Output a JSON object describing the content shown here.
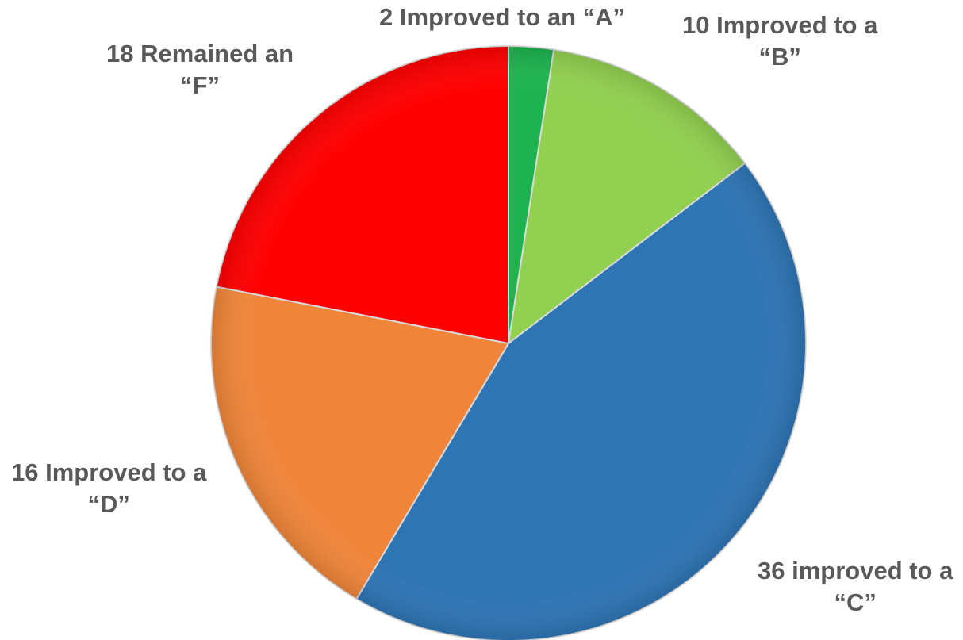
{
  "chart_data": {
    "type": "pie",
    "start_angle_deg": 0,
    "direction": "clockwise",
    "slices": [
      {
        "value": 2,
        "label_line1": "2  Improved to an “A”",
        "label_line2": "",
        "color": "#1db34e"
      },
      {
        "value": 10,
        "label_line1": "10 Improved to a",
        "label_line2": "“B”",
        "color": "#92d050"
      },
      {
        "value": 36,
        "label_line1": "36 improved to a",
        "label_line2": "“C”",
        "color": "#2e75b6"
      },
      {
        "value": 16,
        "label_line1": "16 Improved to a",
        "label_line2": "“D”",
        "color": "#f0853a"
      },
      {
        "value": 18,
        "label_line1": "18 Remained an",
        "label_line2": "“F”",
        "color": "#ff0000"
      }
    ],
    "legend": "none",
    "label_color": "#595959"
  }
}
